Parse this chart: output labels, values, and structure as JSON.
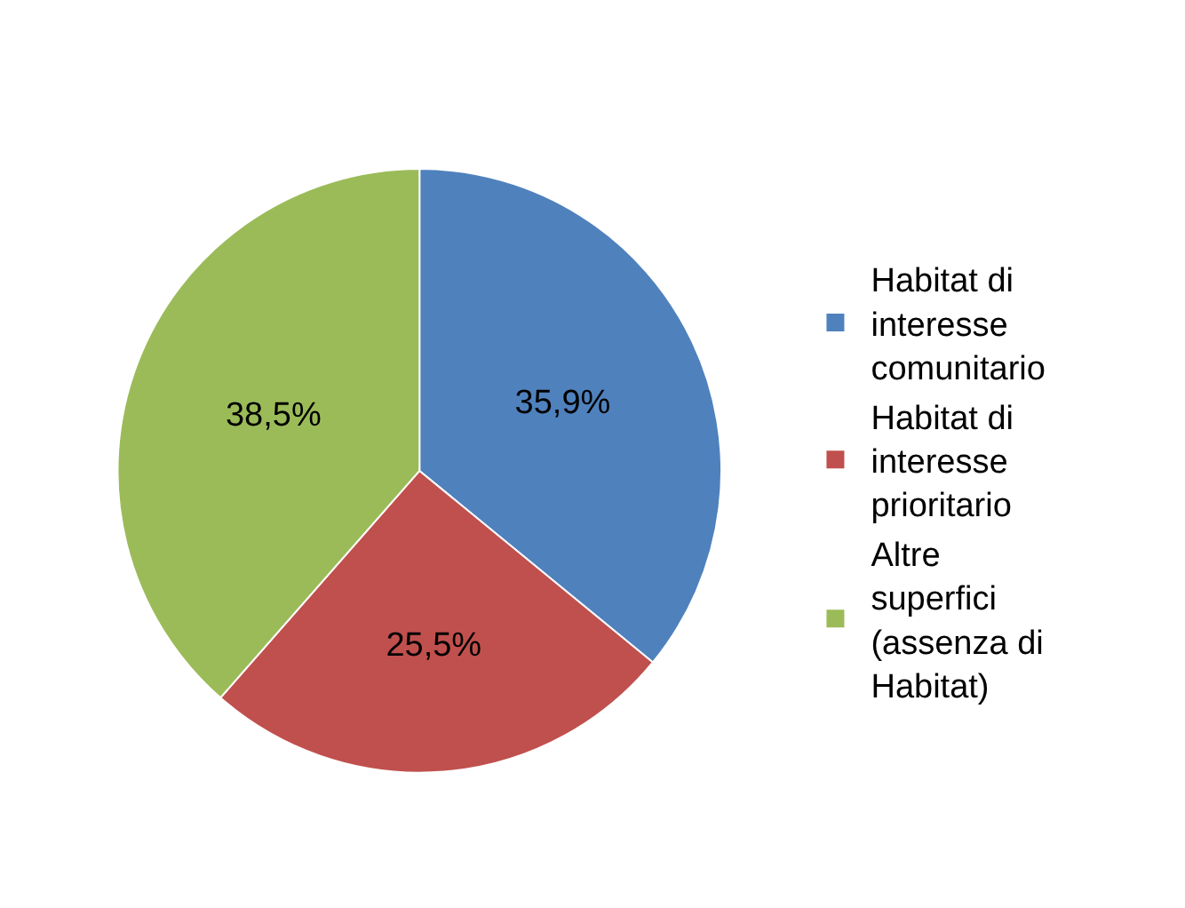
{
  "chart_data": {
    "type": "pie",
    "categories": [
      "Habitat di interesse comunitario",
      "Habitat di interesse prioritario",
      "Altre superfici (assenza di Habitat)"
    ],
    "values": [
      35.9,
      25.5,
      38.5
    ],
    "value_labels": [
      "35,9%",
      "25,5%",
      "38,5%"
    ],
    "colors": [
      "#4f81bd",
      "#c0504d",
      "#9bbb59"
    ],
    "legend": "right"
  }
}
